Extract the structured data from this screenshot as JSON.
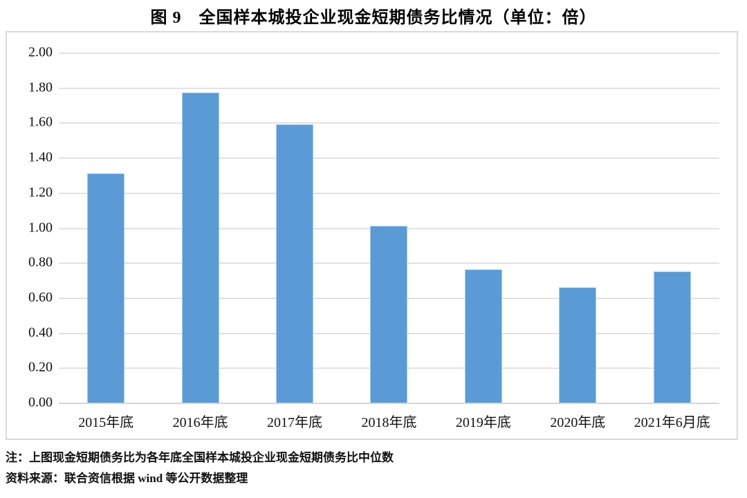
{
  "figure": {
    "title": "图 9　全国样本城投企业现金短期债务比情况（单位：倍）",
    "note": "注：上图现金短期债务比为各年底全国样本城投企业现金短期债务比中位数",
    "source": "资料来源：联合资信根据 wind 等公开数据整理"
  },
  "chart_data": {
    "type": "bar",
    "title": "图 9　全国样本城投企业现金短期债务比情况（单位：倍）",
    "categories": [
      "2015年底",
      "2016年底",
      "2017年底",
      "2018年底",
      "2019年底",
      "2020年底",
      "2021年6月底"
    ],
    "values": [
      1.31,
      1.77,
      1.59,
      1.01,
      0.76,
      0.66,
      0.75
    ],
    "unit": "倍",
    "xlabel": "",
    "ylabel": "",
    "ylim": [
      0,
      2.0
    ],
    "ytick_step": 0.2,
    "ytick_labels": [
      "0.00",
      "0.20",
      "0.40",
      "0.60",
      "0.80",
      "1.00",
      "1.20",
      "1.40",
      "1.60",
      "1.80",
      "2.00"
    ],
    "grid": true,
    "legend_position": "none",
    "bar_color": "#5b9bd5",
    "bar_border_color": "#a9cbea",
    "gridline_color": "#e2e2e2",
    "plot_border_color": "#d9d9d9"
  }
}
